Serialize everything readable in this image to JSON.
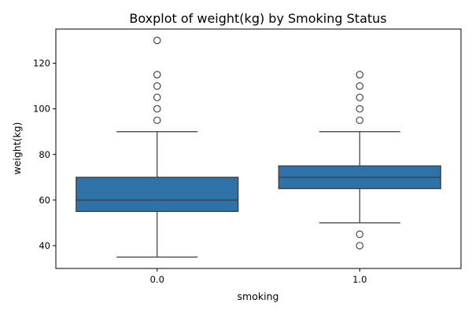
{
  "chart_data": {
    "type": "boxplot",
    "title": "Boxplot of weight(kg) by Smoking Status",
    "xlabel": "smoking",
    "ylabel": "weight(kg)",
    "categories": [
      "0.0",
      "1.0"
    ],
    "ylim": [
      30,
      135
    ],
    "yticks": [
      40,
      60,
      80,
      100,
      120
    ],
    "grid": false,
    "box_color": "#2f72a8",
    "line_color": "#3a3a3a",
    "boxes": [
      {
        "category": "0.0",
        "whisker_low": 35,
        "q1": 55,
        "median": 60,
        "q3": 70,
        "whisker_high": 90,
        "outliers": [
          95,
          100,
          105,
          110,
          115,
          130
        ]
      },
      {
        "category": "1.0",
        "whisker_low": 50,
        "q1": 65,
        "median": 70,
        "q3": 75,
        "whisker_high": 90,
        "outliers": [
          40,
          45,
          95,
          100,
          105,
          110,
          115
        ]
      }
    ]
  }
}
